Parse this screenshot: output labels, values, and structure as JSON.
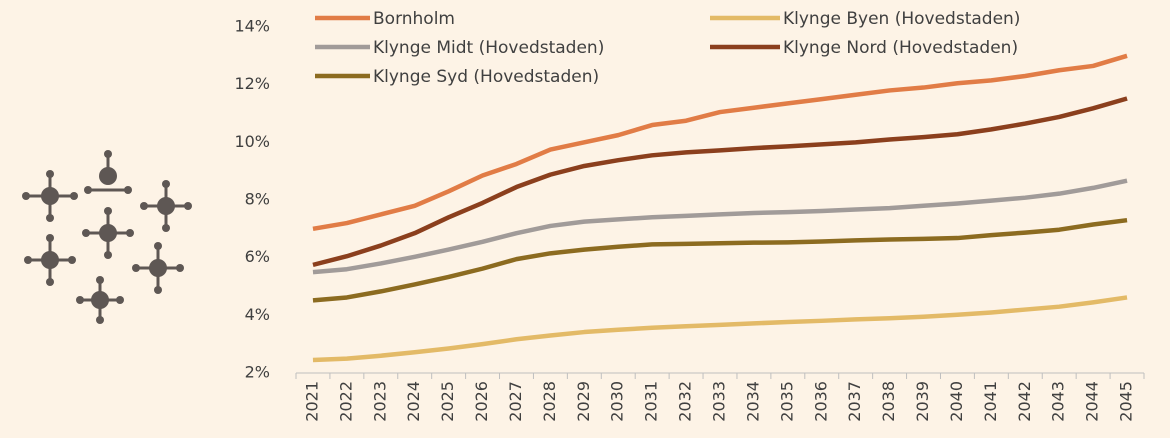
{
  "chart_data": {
    "type": "line",
    "categories": [
      "2021",
      "2022",
      "2023",
      "2024",
      "2025",
      "2026",
      "2027",
      "2028",
      "2029",
      "2030",
      "2031",
      "2032",
      "2033",
      "2034",
      "2035",
      "2036",
      "2037",
      "2038",
      "2039",
      "2040",
      "2041",
      "2042",
      "2043",
      "2044",
      "2045"
    ],
    "series": [
      {
        "name": "Bornholm",
        "color": "#e17c46",
        "values": [
          7.0,
          7.2,
          7.5,
          7.8,
          8.3,
          8.85,
          9.25,
          9.75,
          10.0,
          10.25,
          10.6,
          10.75,
          11.05,
          11.2,
          11.35,
          11.5,
          11.65,
          11.8,
          11.9,
          12.05,
          12.15,
          12.3,
          12.5,
          12.65,
          13.0
        ]
      },
      {
        "name": "Klynge Byen (Hovedstaden)",
        "color": "#e3ba67",
        "values": [
          2.45,
          2.5,
          2.6,
          2.72,
          2.85,
          3.0,
          3.17,
          3.3,
          3.42,
          3.5,
          3.57,
          3.62,
          3.67,
          3.72,
          3.77,
          3.81,
          3.86,
          3.9,
          3.95,
          4.02,
          4.1,
          4.2,
          4.3,
          4.45,
          4.62
        ]
      },
      {
        "name": "Klynge Midt (Hovedstaden)",
        "color": "#a19b99",
        "values": [
          5.5,
          5.6,
          5.8,
          6.03,
          6.28,
          6.55,
          6.85,
          7.1,
          7.25,
          7.33,
          7.4,
          7.45,
          7.5,
          7.55,
          7.58,
          7.62,
          7.67,
          7.72,
          7.8,
          7.88,
          7.98,
          8.08,
          8.22,
          8.42,
          8.67
        ]
      },
      {
        "name": "Klynge Nord (Hovedstaden)",
        "color": "#8b3f1d",
        "values": [
          5.75,
          6.05,
          6.42,
          6.85,
          7.4,
          7.9,
          8.45,
          8.88,
          9.18,
          9.38,
          9.55,
          9.65,
          9.72,
          9.8,
          9.86,
          9.93,
          10.0,
          10.1,
          10.18,
          10.28,
          10.45,
          10.65,
          10.88,
          11.18,
          11.52
        ]
      },
      {
        "name": "Klynge Syd (Hovedstaden)",
        "color": "#8c6b20",
        "values": [
          4.52,
          4.62,
          4.83,
          5.07,
          5.33,
          5.62,
          5.95,
          6.15,
          6.28,
          6.38,
          6.46,
          6.48,
          6.5,
          6.52,
          6.53,
          6.56,
          6.6,
          6.63,
          6.65,
          6.68,
          6.78,
          6.87,
          6.97,
          7.15,
          7.3
        ]
      }
    ],
    "ylim": [
      2,
      14
    ],
    "yticks": [
      {
        "value": 2,
        "label": "2%"
      },
      {
        "value": 4,
        "label": "4%"
      },
      {
        "value": 6,
        "label": "6%"
      },
      {
        "value": 8,
        "label": "8%"
      },
      {
        "value": 10,
        "label": "10%"
      },
      {
        "value": 12,
        "label": "12%"
      },
      {
        "value": 14,
        "label": "14%"
      }
    ],
    "legend": "top",
    "grid": false
  }
}
